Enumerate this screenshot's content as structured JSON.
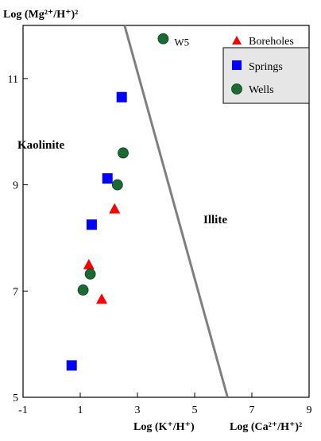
{
  "chart_data": {
    "type": "scatter",
    "title": "",
    "ylabel": "Log (Mg²⁺/H⁺)²",
    "xlabels": [
      "Log (K⁺/H⁺)",
      "Log (Ca²⁺/H⁺)²"
    ],
    "xlim": [
      -1,
      9
    ],
    "ylim": [
      5,
      12
    ],
    "x_ticks": [
      -1,
      1,
      3,
      5,
      7,
      9
    ],
    "y_ticks": [
      5,
      7,
      9,
      11
    ],
    "grid": false,
    "legend_position": "top-right",
    "fields": [
      {
        "name": "Kaolinite",
        "side": "left"
      },
      {
        "name": "Illite",
        "side": "right"
      }
    ],
    "boundary": {
      "points": [
        [
          2.55,
          12.0
        ],
        [
          6.15,
          5.0
        ]
      ],
      "color": "#7f7f7f"
    },
    "series": [
      {
        "name": "Boreholes",
        "marker": "triangle",
        "color": "#ff0000",
        "points": [
          {
            "x": 2.2,
            "y": 8.55
          },
          {
            "x": 1.3,
            "y": 7.5
          },
          {
            "x": 1.75,
            "y": 6.85
          }
        ]
      },
      {
        "name": "Springs",
        "marker": "square",
        "color": "#0000ff",
        "points": [
          {
            "x": 2.45,
            "y": 10.65
          },
          {
            "x": 1.95,
            "y": 9.12
          },
          {
            "x": 1.4,
            "y": 8.25
          },
          {
            "x": 0.7,
            "y": 5.6
          }
        ]
      },
      {
        "name": "Wells",
        "marker": "circle",
        "color": "#1a6b33",
        "points": [
          {
            "x": 3.9,
            "y": 11.75,
            "label": "W5"
          },
          {
            "x": 2.5,
            "y": 9.6
          },
          {
            "x": 2.3,
            "y": 9.0
          },
          {
            "x": 1.35,
            "y": 7.32
          },
          {
            "x": 1.1,
            "y": 7.02
          }
        ]
      }
    ]
  }
}
